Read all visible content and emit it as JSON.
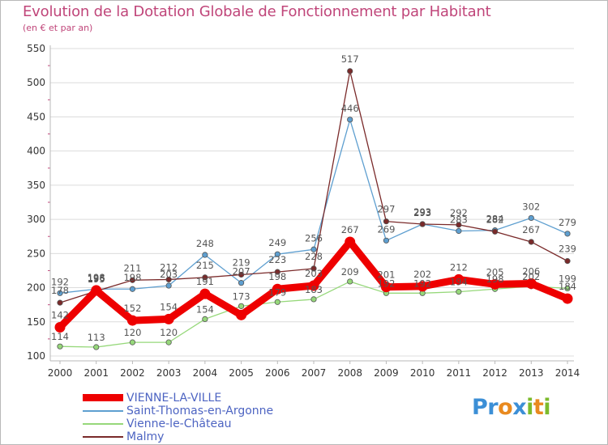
{
  "title": "Evolution de la Dotation Globale de Fonctionnement par Habitant",
  "subtitle": "(en € et par an)",
  "colors": {
    "title": "#c0467a",
    "legend_text": "#4d64c2",
    "axis": "#b9b9b9",
    "grid": "#dcdcdc",
    "tick_text": "#333333",
    "label_text": "#555555"
  },
  "logo": {
    "letters": [
      "P",
      "r",
      "o",
      "x",
      "i",
      "t",
      "i"
    ],
    "colors": [
      "#3c8fd6",
      "#3c8fd6",
      "#e98a1f",
      "#3c8fd6",
      "#7cbb2c",
      "#e98a1f",
      "#7cbb2c"
    ]
  },
  "chart_data": {
    "type": "line",
    "title": "Evolution de la Dotation Globale de Fonctionnement par Habitant",
    "subtitle": "(en € et par an)",
    "x": [
      "2000",
      "2001",
      "2002",
      "2003",
      "2004",
      "2005",
      "2006",
      "2007",
      "2008",
      "2009",
      "2010",
      "2011",
      "2012",
      "2013",
      "2014"
    ],
    "ylim": [
      100,
      550
    ],
    "yticks": [
      100,
      150,
      200,
      250,
      300,
      350,
      400,
      450,
      500,
      550
    ],
    "grid": "horizontal",
    "legend_position": "bottom-left",
    "series": [
      {
        "name": "VIENNE-LA-VILLE",
        "color": "#ee0000",
        "values": [
          142,
          196,
          152,
          154,
          191,
          160,
          198,
          203,
          267,
          201,
          202,
          212,
          205,
          206,
          184
        ],
        "labels": [
          "142",
          "196",
          "152",
          "154",
          "191",
          "",
          "198",
          "203",
          "267",
          "201",
          "202",
          "212",
          "205",
          "206",
          "184"
        ]
      },
      {
        "name": "Saint-Thomas-en-Argonne",
        "color": "#5e9fd0",
        "values": [
          192,
          198,
          198,
          203,
          248,
          207,
          249,
          256,
          446,
          269,
          293,
          283,
          284,
          302,
          279
        ],
        "labels": [
          "192",
          "198",
          "198",
          "203",
          "248",
          "207",
          "249",
          "256",
          "446",
          "269",
          "293",
          "283",
          "284",
          "302",
          "279"
        ]
      },
      {
        "name": "Vienne-le-Château",
        "color": "#96d87a",
        "values": [
          114,
          113,
          120,
          120,
          154,
          173,
          179,
          183,
          209,
          192,
          192,
          194,
          198,
          202,
          199
        ],
        "labels": [
          "114",
          "113",
          "120",
          "120",
          "154",
          "173",
          "179",
          "183",
          "209",
          "192",
          "192",
          "194",
          "198",
          "202",
          "199"
        ]
      },
      {
        "name": "Malmy",
        "color": "#7a2a2a",
        "values": [
          178,
          195,
          211,
          212,
          215,
          219,
          223,
          228,
          517,
          297,
          293,
          292,
          282,
          267,
          239
        ],
        "labels": [
          "178",
          "195",
          "211",
          "212",
          "215",
          "219",
          "223",
          "228",
          "517",
          "297",
          "293",
          "292",
          "282",
          "267",
          "239"
        ]
      }
    ]
  }
}
